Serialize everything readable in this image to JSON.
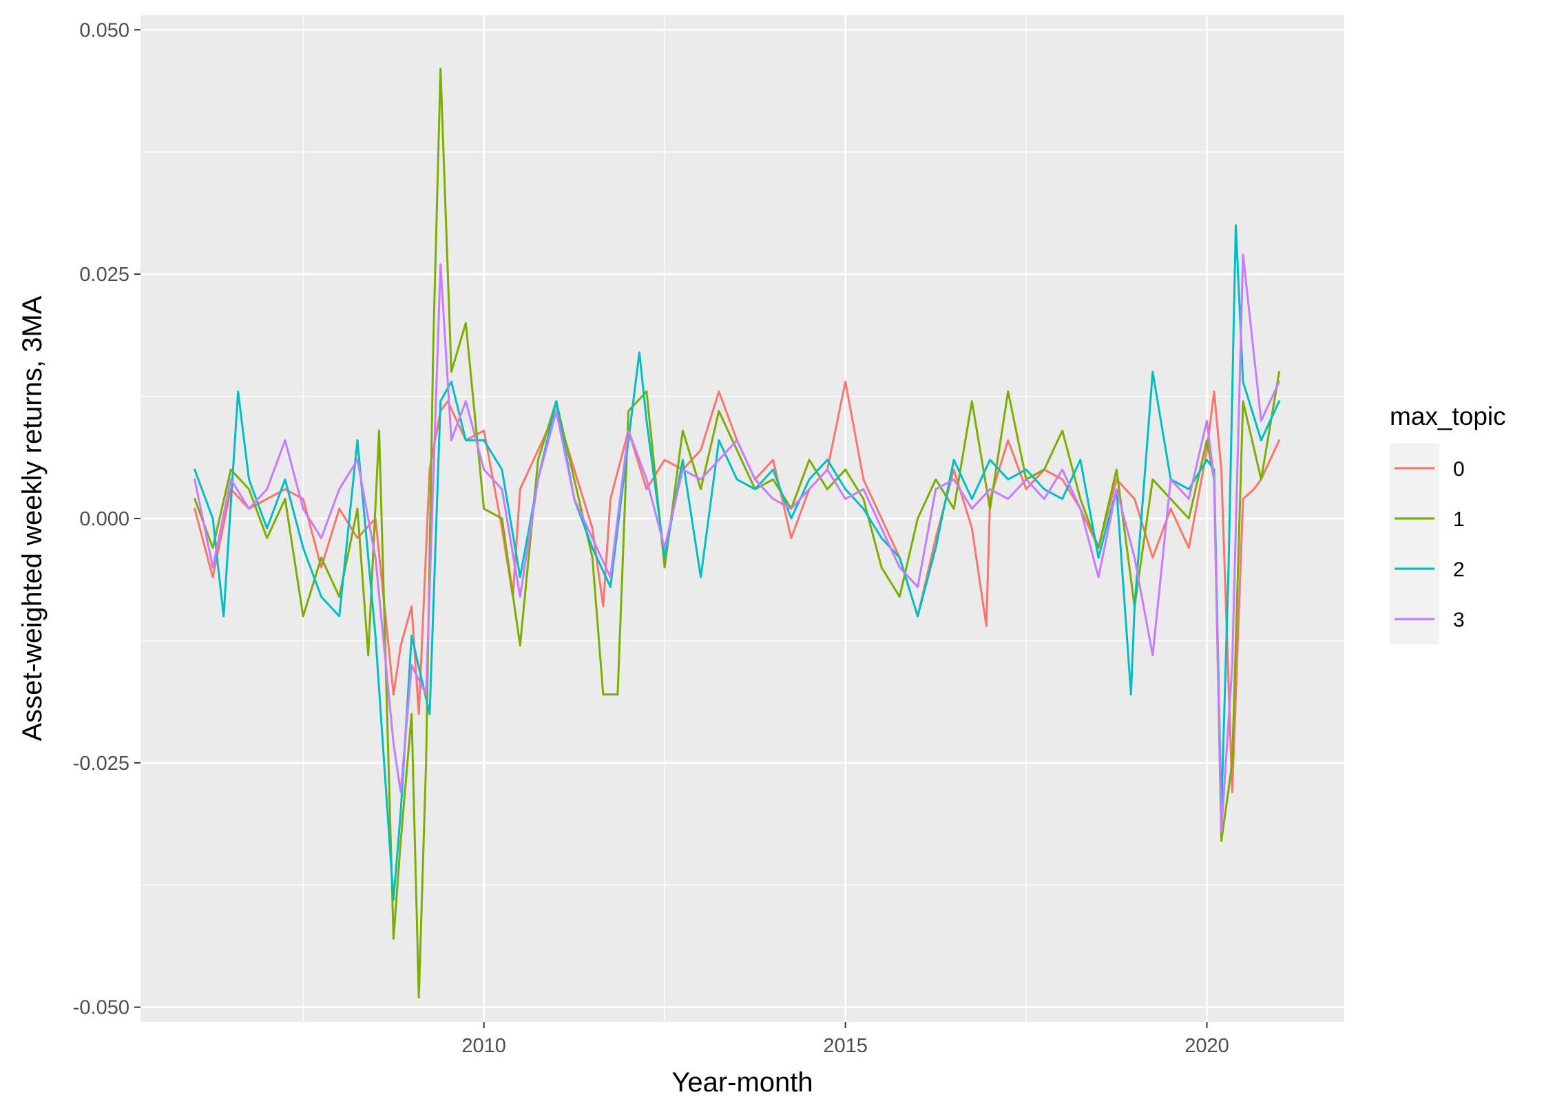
{
  "chart_data": {
    "type": "line",
    "title": "",
    "xlabel": "Year-month",
    "ylabel": "Asset-weighted weekly returns, 3MA",
    "xlim": [
      2006.0,
      2021.0
    ],
    "ylim": [
      -0.05,
      0.05
    ],
    "x_ticks": [
      2010,
      2015,
      2020
    ],
    "x_tick_labels": [
      "2010",
      "2015",
      "2020"
    ],
    "y_ticks": [
      -0.05,
      -0.025,
      0.0,
      0.025,
      0.05
    ],
    "y_tick_labels": [
      "-0.050",
      "-0.025",
      "0.000",
      "0.025",
      "0.050"
    ],
    "grid": true,
    "legend_title": "max_topic",
    "legend_position": "right",
    "series": [
      {
        "name": "0",
        "color": "#F8766D",
        "x": [
          2006.0,
          2006.25,
          2006.5,
          2006.75,
          2007.0,
          2007.25,
          2007.5,
          2007.75,
          2008.0,
          2008.25,
          2008.5,
          2008.75,
          2008.85,
          2009.0,
          2009.1,
          2009.25,
          2009.4,
          2009.5,
          2009.75,
          2010.0,
          2010.25,
          2010.4,
          2010.5,
          2010.75,
          2011.0,
          2011.25,
          2011.5,
          2011.65,
          2011.75,
          2012.0,
          2012.25,
          2012.5,
          2012.75,
          2013.0,
          2013.25,
          2013.5,
          2013.75,
          2014.0,
          2014.25,
          2014.5,
          2014.75,
          2015.0,
          2015.25,
          2015.5,
          2015.75,
          2016.0,
          2016.25,
          2016.5,
          2016.75,
          2016.95,
          2017.0,
          2017.25,
          2017.5,
          2017.75,
          2018.0,
          2018.25,
          2018.5,
          2018.75,
          2019.0,
          2019.25,
          2019.5,
          2019.75,
          2020.0,
          2020.1,
          2020.2,
          2020.35,
          2020.5,
          2020.65,
          2020.75,
          2021.0
        ],
        "y": [
          0.001,
          -0.006,
          0.003,
          0.001,
          0.002,
          0.003,
          0.002,
          -0.005,
          0.001,
          -0.002,
          0.0,
          -0.018,
          -0.013,
          -0.009,
          -0.02,
          0.005,
          0.011,
          0.012,
          0.008,
          0.009,
          -0.001,
          -0.008,
          0.003,
          0.007,
          0.011,
          0.005,
          -0.001,
          -0.009,
          0.002,
          0.009,
          0.003,
          0.006,
          0.005,
          0.007,
          0.013,
          0.008,
          0.004,
          0.006,
          -0.002,
          0.003,
          0.005,
          0.014,
          0.004,
          0.0,
          -0.004,
          -0.01,
          -0.002,
          0.005,
          -0.001,
          -0.011,
          0.002,
          0.008,
          0.003,
          0.005,
          0.004,
          0.001,
          -0.003,
          0.004,
          0.002,
          -0.004,
          0.001,
          -0.003,
          0.007,
          0.013,
          0.005,
          -0.028,
          0.002,
          0.003,
          0.004,
          0.008
        ]
      },
      {
        "name": "1",
        "color": "#7CAE00",
        "x": [
          2006.0,
          2006.25,
          2006.5,
          2006.75,
          2007.0,
          2007.25,
          2007.5,
          2007.75,
          2008.0,
          2008.25,
          2008.4,
          2008.55,
          2008.75,
          2008.85,
          2009.0,
          2009.1,
          2009.2,
          2009.3,
          2009.4,
          2009.55,
          2009.75,
          2010.0,
          2010.25,
          2010.5,
          2010.75,
          2011.0,
          2011.25,
          2011.5,
          2011.65,
          2011.85,
          2012.0,
          2012.25,
          2012.5,
          2012.75,
          2013.0,
          2013.25,
          2013.5,
          2013.75,
          2014.0,
          2014.25,
          2014.5,
          2014.75,
          2015.0,
          2015.25,
          2015.5,
          2015.75,
          2016.0,
          2016.25,
          2016.5,
          2016.75,
          2017.0,
          2017.25,
          2017.5,
          2017.75,
          2018.0,
          2018.25,
          2018.5,
          2018.75,
          2019.0,
          2019.25,
          2019.5,
          2019.75,
          2020.0,
          2020.1,
          2020.2,
          2020.35,
          2020.5,
          2020.75,
          2021.0
        ],
        "y": [
          0.002,
          -0.003,
          0.005,
          0.003,
          -0.002,
          0.002,
          -0.01,
          -0.004,
          -0.008,
          0.001,
          -0.014,
          0.009,
          -0.043,
          -0.033,
          -0.02,
          -0.049,
          -0.025,
          0.018,
          0.046,
          0.015,
          0.02,
          0.001,
          0.0,
          -0.013,
          0.006,
          0.012,
          0.004,
          -0.004,
          -0.018,
          -0.018,
          0.011,
          0.013,
          -0.005,
          0.009,
          0.003,
          0.011,
          0.007,
          0.003,
          0.004,
          0.001,
          0.006,
          0.003,
          0.005,
          0.002,
          -0.005,
          -0.008,
          0.0,
          0.004,
          0.001,
          0.012,
          0.001,
          0.013,
          0.004,
          0.005,
          0.009,
          0.002,
          -0.003,
          0.005,
          -0.009,
          0.004,
          0.002,
          0.0,
          0.008,
          0.004,
          -0.033,
          -0.025,
          0.012,
          0.004,
          0.015
        ]
      },
      {
        "name": "2",
        "color": "#00BFC4",
        "x": [
          2006.0,
          2006.25,
          2006.4,
          2006.6,
          2006.75,
          2007.0,
          2007.25,
          2007.5,
          2007.75,
          2008.0,
          2008.25,
          2008.5,
          2008.75,
          2008.85,
          2009.0,
          2009.25,
          2009.4,
          2009.55,
          2009.75,
          2010.0,
          2010.25,
          2010.5,
          2010.75,
          2011.0,
          2011.25,
          2011.5,
          2011.75,
          2012.0,
          2012.15,
          2012.25,
          2012.5,
          2012.75,
          2013.0,
          2013.25,
          2013.5,
          2013.75,
          2014.0,
          2014.25,
          2014.5,
          2014.75,
          2015.0,
          2015.25,
          2015.5,
          2015.75,
          2016.0,
          2016.25,
          2016.5,
          2016.75,
          2017.0,
          2017.25,
          2017.5,
          2017.75,
          2018.0,
          2018.25,
          2018.5,
          2018.75,
          2018.95,
          2019.0,
          2019.25,
          2019.5,
          2019.75,
          2020.0,
          2020.1,
          2020.2,
          2020.3,
          2020.4,
          2020.5,
          2020.75,
          2021.0
        ],
        "y": [
          0.005,
          0.0,
          -0.01,
          0.013,
          0.004,
          -0.001,
          0.004,
          -0.003,
          -0.008,
          -0.01,
          0.008,
          -0.012,
          -0.039,
          -0.03,
          -0.012,
          -0.02,
          0.012,
          0.014,
          0.008,
          0.008,
          0.005,
          -0.006,
          0.004,
          0.012,
          0.002,
          -0.003,
          -0.007,
          0.008,
          0.017,
          0.01,
          -0.004,
          0.006,
          -0.006,
          0.008,
          0.004,
          0.003,
          0.005,
          0.0,
          0.004,
          0.006,
          0.003,
          0.001,
          -0.002,
          -0.004,
          -0.01,
          -0.003,
          0.006,
          0.002,
          0.006,
          0.004,
          0.005,
          0.003,
          0.002,
          0.006,
          -0.004,
          0.003,
          -0.018,
          -0.009,
          0.015,
          0.004,
          0.003,
          0.006,
          0.005,
          -0.03,
          -0.005,
          0.03,
          0.014,
          0.008,
          0.012
        ]
      },
      {
        "name": "3",
        "color": "#C77CFF",
        "x": [
          2006.0,
          2006.25,
          2006.5,
          2006.75,
          2007.0,
          2007.25,
          2007.5,
          2007.75,
          2008.0,
          2008.25,
          2008.5,
          2008.75,
          2008.85,
          2009.0,
          2009.2,
          2009.4,
          2009.55,
          2009.75,
          2010.0,
          2010.25,
          2010.5,
          2010.75,
          2011.0,
          2011.25,
          2011.5,
          2011.75,
          2012.0,
          2012.25,
          2012.5,
          2012.75,
          2013.0,
          2013.25,
          2013.5,
          2013.75,
          2014.0,
          2014.25,
          2014.5,
          2014.75,
          2015.0,
          2015.25,
          2015.5,
          2015.75,
          2016.0,
          2016.25,
          2016.5,
          2016.75,
          2017.0,
          2017.25,
          2017.5,
          2017.75,
          2018.0,
          2018.25,
          2018.5,
          2018.75,
          2019.0,
          2019.25,
          2019.5,
          2019.75,
          2020.0,
          2020.1,
          2020.2,
          2020.35,
          2020.5,
          2020.75,
          2021.0
        ],
        "y": [
          0.004,
          -0.005,
          0.004,
          0.001,
          0.003,
          0.008,
          0.001,
          -0.002,
          0.003,
          0.006,
          -0.004,
          -0.023,
          -0.028,
          -0.015,
          -0.018,
          0.026,
          0.008,
          0.012,
          0.005,
          0.003,
          -0.008,
          0.004,
          0.011,
          0.002,
          -0.002,
          -0.006,
          0.009,
          0.004,
          -0.003,
          0.005,
          0.004,
          0.006,
          0.008,
          0.004,
          0.002,
          0.001,
          0.003,
          0.005,
          0.002,
          0.003,
          -0.001,
          -0.005,
          -0.007,
          0.003,
          0.004,
          0.001,
          0.003,
          0.002,
          0.004,
          0.002,
          0.005,
          0.001,
          -0.006,
          0.003,
          -0.004,
          -0.014,
          0.004,
          0.002,
          0.01,
          0.004,
          -0.032,
          -0.015,
          0.027,
          0.01,
          0.014
        ]
      }
    ]
  }
}
